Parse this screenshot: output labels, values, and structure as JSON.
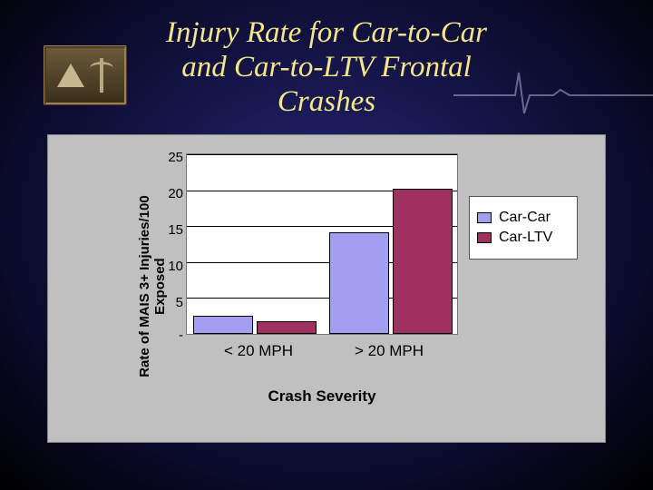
{
  "title_lines": [
    "Injury Rate for Car-to-Car",
    "and Car-to-LTV Frontal",
    "Crashes"
  ],
  "title_color": "#f5e68a",
  "title_fontsize": 33,
  "chart": {
    "type": "bar",
    "background": "#c0c0c0",
    "plot_background": "#ffffff",
    "grid_color": "#000000",
    "ylabel": "Rate of MAIS 3+ Injuries/100 Exposed",
    "ylabel_fontsize": 15,
    "xaxis_title": "Crash Severity",
    "xaxis_title_fontsize": 17,
    "categories": [
      "< 20 MPH",
      "> 20 MPH"
    ],
    "series": [
      {
        "name": "Car-Car",
        "color": "#a29ef0",
        "values": [
          2.5,
          14
        ]
      },
      {
        "name": "Car-LTV",
        "color": "#a03060",
        "values": [
          1.8,
          20
        ]
      }
    ],
    "ylim": [
      0,
      25
    ],
    "yticks": [
      0,
      5,
      10,
      15,
      20,
      25
    ],
    "ytick_labels": [
      "-",
      "5",
      "10",
      "15",
      "20",
      "25"
    ],
    "bar_group_width": 0.42,
    "bar_width": 0.2,
    "legend_position": "right",
    "legend_fontsize": 16
  }
}
